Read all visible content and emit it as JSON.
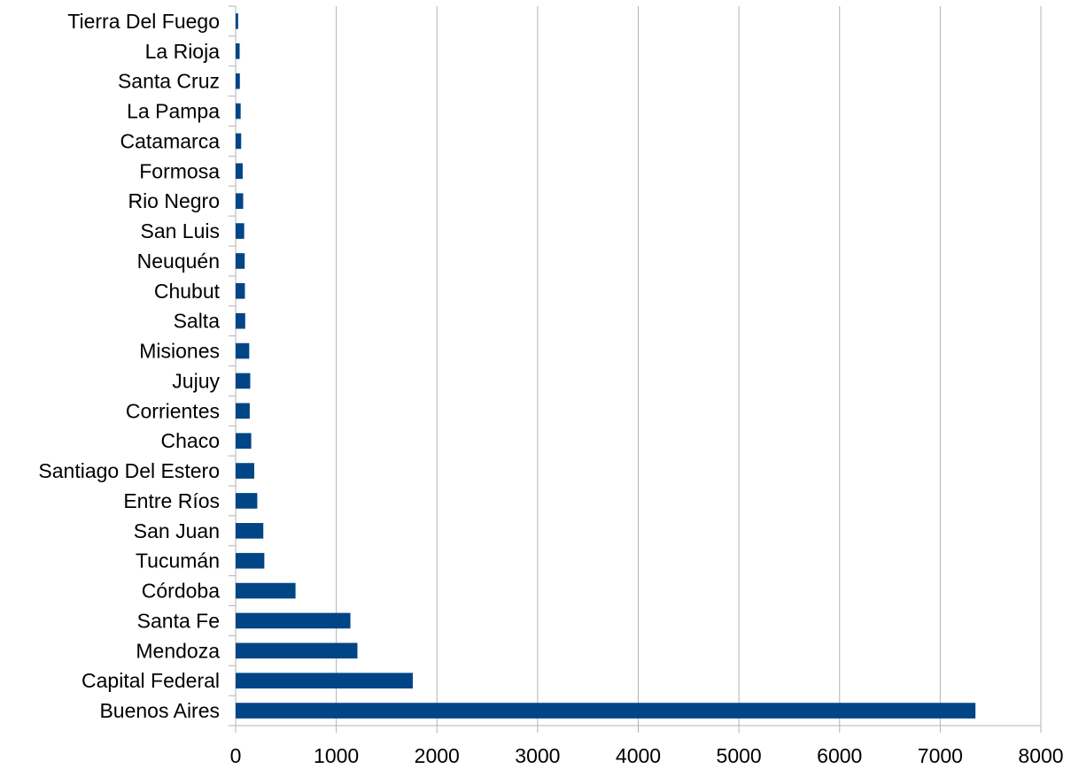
{
  "chart_data": {
    "type": "bar",
    "orientation": "horizontal",
    "title": "",
    "xlabel": "",
    "ylabel": "",
    "xlim": [
      0,
      8000
    ],
    "x_ticks": [
      "0",
      "1000",
      "2000",
      "3000",
      "4000",
      "5000",
      "6000",
      "7000",
      "8000"
    ],
    "grid": "vertical",
    "legend": "none",
    "bar_color": "#004586",
    "categories": [
      "Tierra Del Fuego",
      "La Rioja",
      "Santa Cruz",
      "La Pampa",
      "Catamarca",
      "Formosa",
      "Rio Negro",
      "San Luis",
      "Neuquén",
      "Chubut",
      "Salta",
      "Misiones",
      "Jujuy",
      "Corrientes",
      "Chaco",
      "Santiago Del Estero",
      "Entre Ríos",
      "San Juan",
      "Tucumán",
      "Córdoba",
      "Santa Fe",
      "Mendoza",
      "Capital Federal",
      "Buenos Aires"
    ],
    "values": [
      25,
      40,
      42,
      50,
      55,
      70,
      75,
      85,
      90,
      92,
      95,
      135,
      145,
      140,
      155,
      185,
      215,
      275,
      285,
      595,
      1140,
      1210,
      1760,
      7350
    ]
  }
}
